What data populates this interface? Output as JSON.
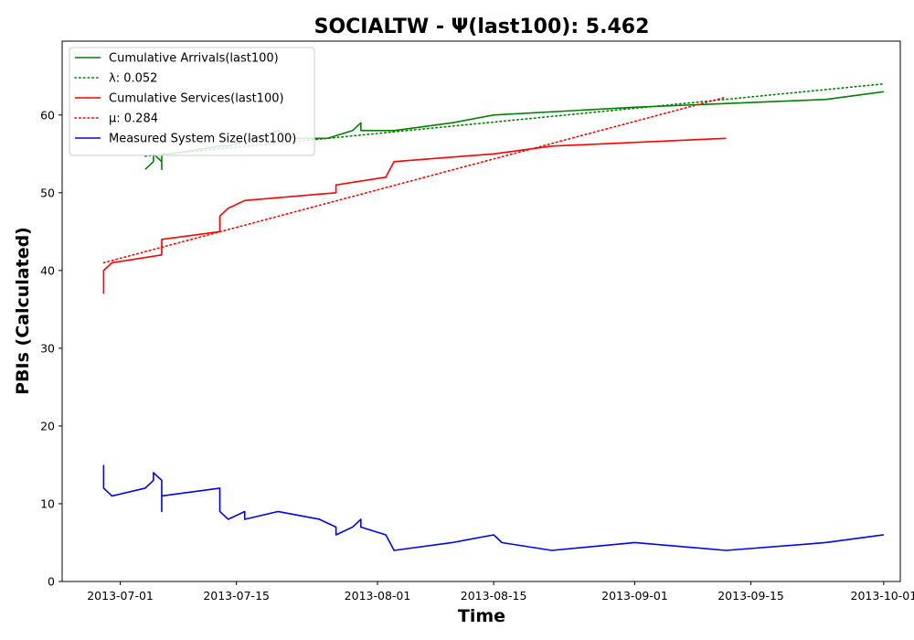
{
  "chart_data": {
    "type": "line",
    "title": "SOCIALTW -  Ψ(last100): 5.462",
    "xlabel": "Time",
    "ylabel": "PBIs (Calculated)",
    "xlim": [
      "2013-06-24",
      "2013-10-03"
    ],
    "ylim": [
      0,
      69.5
    ],
    "x_ticks": [
      "2013-07-01",
      "2013-07-15",
      "2013-08-01",
      "2013-08-15",
      "2013-09-01",
      "2013-09-15",
      "2013-10-01"
    ],
    "y_ticks": [
      0,
      10,
      20,
      30,
      40,
      50,
      60
    ],
    "grid": false,
    "legend_position": "upper-left",
    "series": [
      {
        "name": "Cumulative Arrivals(last100)",
        "color": "#008000",
        "style": "solid",
        "points": [
          [
            "2013-07-04",
            53
          ],
          [
            "2013-07-05",
            54
          ],
          [
            "2013-07-05",
            55
          ],
          [
            "2013-07-06",
            54
          ],
          [
            "2013-07-06",
            53
          ],
          [
            "2013-07-06",
            55
          ],
          [
            "2013-07-07",
            55
          ],
          [
            "2013-07-13",
            56
          ],
          [
            "2013-07-14",
            56
          ],
          [
            "2013-07-20",
            58
          ],
          [
            "2013-07-22",
            57
          ],
          [
            "2013-07-26",
            57
          ],
          [
            "2013-07-29",
            58
          ],
          [
            "2013-07-30",
            59
          ],
          [
            "2013-07-30",
            58
          ],
          [
            "2013-08-03",
            58
          ],
          [
            "2013-08-10",
            59
          ],
          [
            "2013-08-15",
            60
          ],
          [
            "2013-09-01",
            61
          ],
          [
            "2013-09-24",
            62
          ],
          [
            "2013-10-01",
            63
          ]
        ]
      },
      {
        "name": "λ: 0.052",
        "color": "#008000",
        "style": "dotted",
        "points": [
          [
            "2013-07-04",
            54.7
          ],
          [
            "2013-10-01",
            64
          ]
        ]
      },
      {
        "name": "Cumulative Services(last100)",
        "color": "#ff0000",
        "style": "solid",
        "points": [
          [
            "2013-06-29",
            37
          ],
          [
            "2013-06-29",
            40
          ],
          [
            "2013-06-30",
            41
          ],
          [
            "2013-07-06",
            42
          ],
          [
            "2013-07-06",
            44
          ],
          [
            "2013-07-13",
            45
          ],
          [
            "2013-07-13",
            47
          ],
          [
            "2013-07-14",
            48
          ],
          [
            "2013-07-16",
            49
          ],
          [
            "2013-07-27",
            50
          ],
          [
            "2013-07-27",
            51
          ],
          [
            "2013-08-02",
            52
          ],
          [
            "2013-08-03",
            54
          ],
          [
            "2013-08-15",
            55
          ],
          [
            "2013-08-22",
            56
          ],
          [
            "2013-09-12",
            57
          ]
        ]
      },
      {
        "name": "μ: 0.284",
        "color": "#ff0000",
        "style": "dotted",
        "points": [
          [
            "2013-06-29",
            41
          ],
          [
            "2013-09-12",
            62.3
          ]
        ]
      },
      {
        "name": "Measured System Size(last100)",
        "color": "#0000ff",
        "style": "solid",
        "points": [
          [
            "2013-06-29",
            15
          ],
          [
            "2013-06-29",
            12
          ],
          [
            "2013-06-30",
            11
          ],
          [
            "2013-07-04",
            12
          ],
          [
            "2013-07-05",
            13
          ],
          [
            "2013-07-05",
            14
          ],
          [
            "2013-07-06",
            13
          ],
          [
            "2013-07-06",
            9
          ],
          [
            "2013-07-06",
            11
          ],
          [
            "2013-07-13",
            12
          ],
          [
            "2013-07-13",
            9
          ],
          [
            "2013-07-14",
            8
          ],
          [
            "2013-07-16",
            9
          ],
          [
            "2013-07-16",
            8
          ],
          [
            "2013-07-20",
            9
          ],
          [
            "2013-07-25",
            8
          ],
          [
            "2013-07-27",
            7
          ],
          [
            "2013-07-27",
            6
          ],
          [
            "2013-07-29",
            7
          ],
          [
            "2013-07-30",
            8
          ],
          [
            "2013-07-30",
            7
          ],
          [
            "2013-08-02",
            6
          ],
          [
            "2013-08-03",
            4
          ],
          [
            "2013-08-10",
            5
          ],
          [
            "2013-08-15",
            6
          ],
          [
            "2013-08-16",
            5
          ],
          [
            "2013-08-22",
            4
          ],
          [
            "2013-09-01",
            5
          ],
          [
            "2013-09-12",
            4
          ],
          [
            "2013-09-24",
            5
          ],
          [
            "2013-10-01",
            6
          ]
        ]
      }
    ]
  }
}
